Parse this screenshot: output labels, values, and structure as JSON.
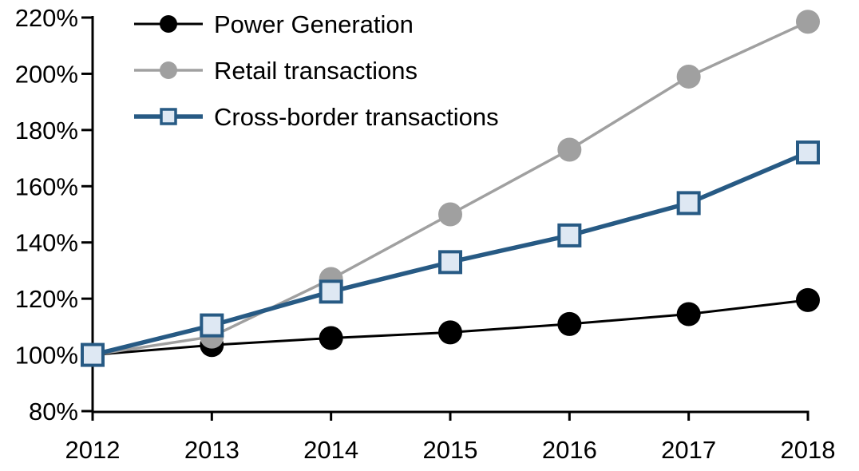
{
  "chart_data": {
    "type": "line",
    "title": "",
    "x": [
      "2012",
      "2013",
      "2014",
      "2015",
      "2016",
      "2017",
      "2018"
    ],
    "xtick_labels": [
      "2012",
      "2013",
      "2014",
      "2015",
      "2016",
      "2017",
      "2018"
    ],
    "yticks": [
      80,
      100,
      120,
      140,
      160,
      180,
      200,
      220
    ],
    "ytick_labels": [
      "80%",
      "100%",
      "120%",
      "140%",
      "160%",
      "180%",
      "200%",
      "220%"
    ],
    "ylim": [
      80,
      220
    ],
    "grid": false,
    "legend_position": "top-left-inside",
    "axis_color": "#000000",
    "series": [
      {
        "name": "Power Generation",
        "color": "#000000",
        "marker": "circle",
        "marker_fill": "#000000",
        "line_width": 3,
        "values": [
          100,
          103.5,
          106,
          108,
          111,
          114.5,
          119.5
        ]
      },
      {
        "name": "Retail transactions",
        "color": "#A0A0A0",
        "marker": "circle",
        "marker_fill": "#A0A0A0",
        "line_width": 3.5,
        "values": [
          100,
          106.5,
          127,
          150,
          173,
          199,
          218.5
        ]
      },
      {
        "name": "Cross-border transactions",
        "color": "#275A84",
        "marker": "square",
        "marker_fill": "#DEE8F3",
        "line_width": 5.5,
        "values": [
          100,
          110.5,
          122.5,
          133,
          142.5,
          154,
          172
        ]
      }
    ]
  }
}
